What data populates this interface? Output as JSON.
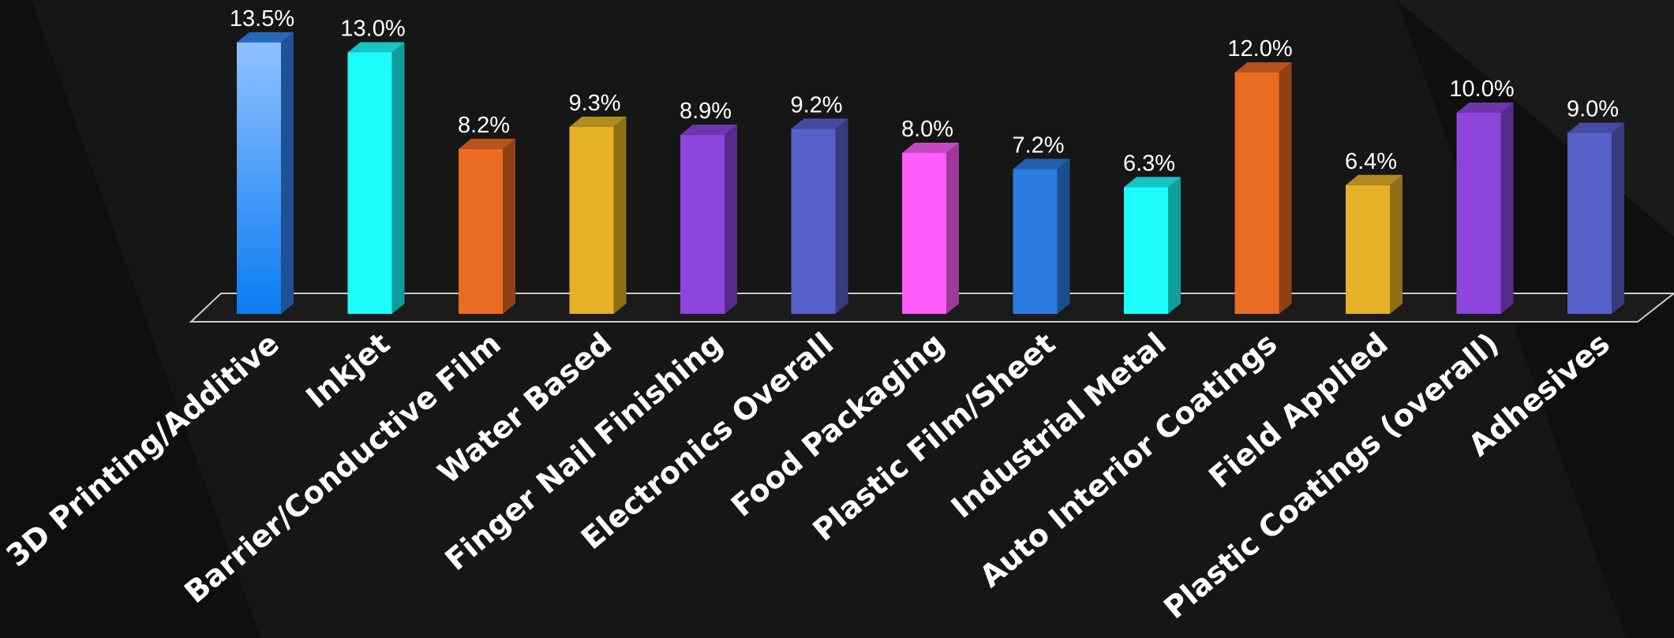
{
  "chart_data": {
    "type": "bar",
    "title": "",
    "xlabel": "",
    "ylabel": "",
    "ylim": [
      0,
      14
    ],
    "grid": false,
    "legend": "none",
    "categories": [
      "3D Printing/Additive",
      "Inkjet",
      "Barrier/Conductive Film",
      "Water Based",
      "Finger Nail Finishing",
      "Electronics Overall",
      "Food Packaging",
      "Plastic Film/Sheet",
      "Industrial Metal",
      "Auto Interior Coatings",
      "Field Applied",
      "Plastic Coatings (overall)",
      "Adhesives"
    ],
    "values": [
      13.5,
      13.0,
      8.2,
      9.3,
      8.9,
      9.2,
      8.0,
      7.2,
      6.3,
      12.0,
      6.4,
      10.0,
      9.0
    ],
    "value_labels": [
      "13.5%",
      "13.0%",
      "8.2%",
      "9.3%",
      "8.9%",
      "9.2%",
      "8.0%",
      "7.2%",
      "6.3%",
      "12.0%",
      "6.4%",
      "10.0%",
      "9.0%"
    ],
    "bar_colors": [
      "#2f86f0",
      "#1cfcfc",
      "#ea6b22",
      "#e6b127",
      "#8d45dd",
      "#5860c9",
      "#ff5cfc",
      "#2b7be0",
      "#1cfcfc",
      "#ea6b22",
      "#e6b127",
      "#8d45dd",
      "#5860c9"
    ],
    "background": "#0f0f0f",
    "floor_color": "#cccccc"
  }
}
